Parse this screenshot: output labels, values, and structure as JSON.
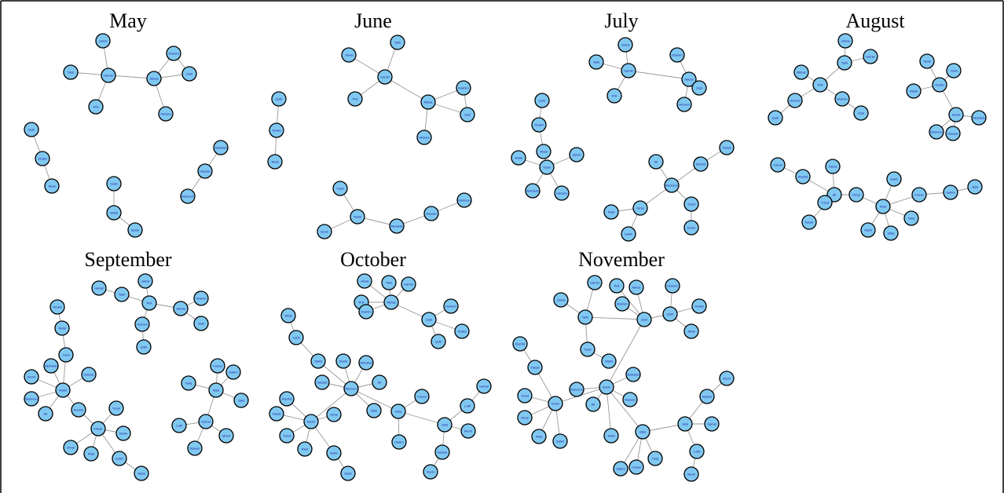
{
  "panels": [
    {
      "title": "May",
      "nodes": [
        "Jamal",
        "Tarik",
        "Hamid",
        "Phil",
        "Abbas",
        "Ibrahim",
        "Zaid",
        "Hicham",
        "Qutb",
        "Khalid",
        "Nidal",
        "Yasin",
        "Walid",
        "Samir",
        "Abdullah",
        "Hassan",
        "Mamoun"
      ]
    },
    {
      "title": "June",
      "nodes": [
        "Jamal",
        "Tarik",
        "Hamid",
        "Phil",
        "Abbas",
        "Ibrahim",
        "Zaid",
        "Hicham",
        "Qutb",
        "Khalid",
        "Nidal",
        "Yasin",
        "Walid",
        "Samir",
        "Abdullah",
        "Hassan",
        "Mamoun"
      ]
    },
    {
      "title": "July",
      "nodes": [
        "Jamal",
        "Tarik",
        "Hamid",
        "Phil",
        "Abbas",
        "Ibrahim",
        "Zaid",
        "Hicham",
        "Qutb",
        "Khalid",
        "Nidal",
        "Yasin",
        "Walid",
        "Samir",
        "Abdullah",
        "Hassan",
        "Mamoun",
        "Ali",
        "Rachid",
        "Faisal",
        "Yusuf",
        "Karim",
        "Omar",
        "Riad",
        "Salim"
      ]
    },
    {
      "title": "August",
      "nodes": [
        "Jamal",
        "Tarik",
        "Hamid",
        "Phil",
        "Abbas",
        "Ibrahim",
        "Zaid",
        "Hicham",
        "Qutb",
        "Khalid",
        "Nidal",
        "Yasin",
        "Walid",
        "Samir",
        "Abdullah",
        "Hassan",
        "Mamoun",
        "Ali",
        "Rachid",
        "Faisal",
        "Yusuf",
        "Karim",
        "Omar",
        "Riad",
        "Salim",
        "Nabil",
        "Bilal",
        "Tariq",
        "Fouad",
        "Hakim",
        "Jalal",
        "Kamal"
      ]
    },
    {
      "title": "September",
      "nodes": [
        "Jamal",
        "Tarik",
        "Hamid",
        "Phil",
        "Abbas",
        "Ibrahim",
        "Zaid",
        "Hicham",
        "Qutb",
        "Khalid",
        "Nidal",
        "Yasin",
        "Walid",
        "Samir",
        "Abdullah",
        "Hassan",
        "Mamoun",
        "Ali",
        "Rachid",
        "Faisal",
        "Yusuf",
        "Karim",
        "Omar",
        "Riad",
        "Salim",
        "Nabil",
        "Bilal",
        "Tariq",
        "Fouad",
        "Hakim",
        "Jalal",
        "Kamal",
        "Latif",
        "Munir",
        "Nasser"
      ]
    },
    {
      "title": "October",
      "nodes": [
        "Jamal",
        "Tarik",
        "Hamid",
        "Phil",
        "Abbas",
        "Ibrahim",
        "Zaid",
        "Hicham",
        "Qutb",
        "Khalid",
        "Nidal",
        "Yasin",
        "Walid",
        "Samir",
        "Abdullah",
        "Hassan",
        "Mamoun",
        "Ali",
        "Rachid",
        "Faisal",
        "Yusuf",
        "Karim",
        "Omar",
        "Riad",
        "Salim",
        "Nabil",
        "Bilal",
        "Tariq",
        "Fouad",
        "Hakim",
        "Jalal",
        "Kamal",
        "Latif",
        "Munir",
        "Nasser",
        "Rami"
      ]
    },
    {
      "title": "November",
      "nodes": [
        "Jamal",
        "Tarik",
        "Hamid",
        "Phil",
        "Abbas",
        "Ibrahim",
        "Zaid",
        "Hicham",
        "Qutb",
        "Khalid",
        "Nidal",
        "Yasin",
        "Walid",
        "Samir",
        "Abdullah",
        "Hassan",
        "Mamoun",
        "Ali",
        "Rachid",
        "Faisal",
        "Yusuf",
        "Karim",
        "Omar",
        "Riad",
        "Salim",
        "Nabil",
        "Bilal",
        "Tariq",
        "Fouad",
        "Hakim",
        "Jalal",
        "Kamal",
        "Latif",
        "Munir",
        "Nasser",
        "Rami"
      ]
    }
  ]
}
